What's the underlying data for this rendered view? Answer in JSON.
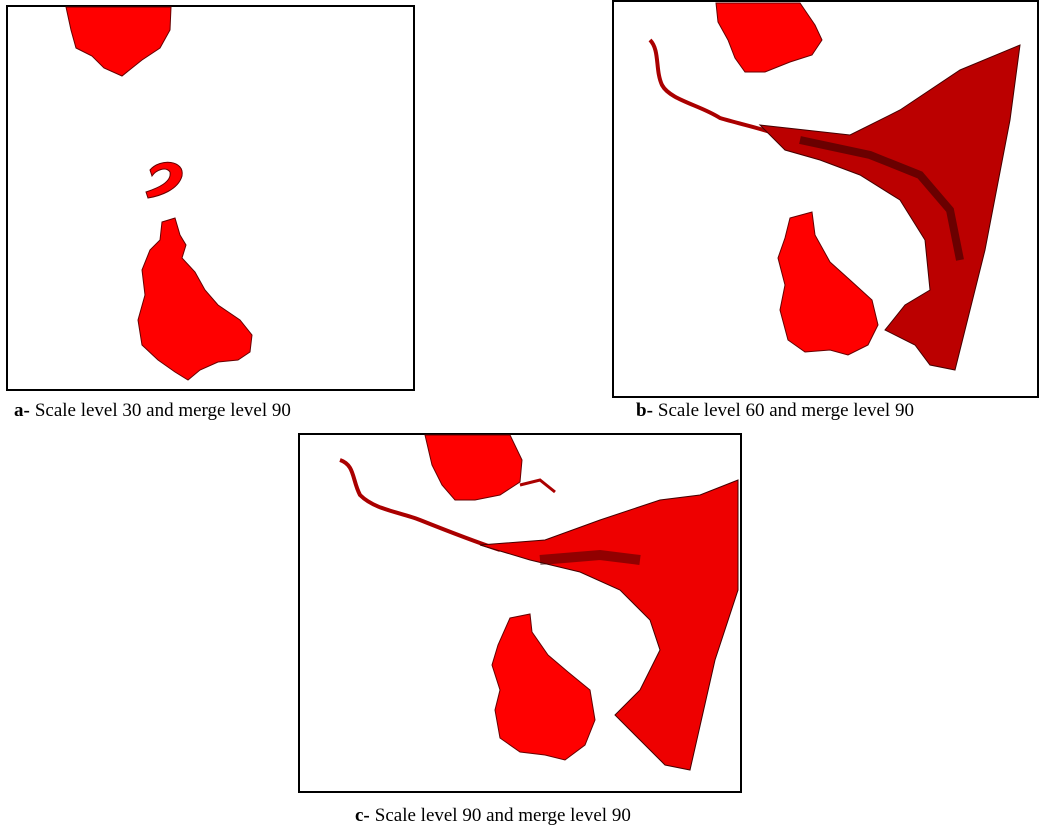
{
  "figures": [
    {
      "label": "a-",
      "caption": "Scale level 30 and merge level 90"
    },
    {
      "label": "b-",
      "caption": "Scale level 60 and merge level 90"
    },
    {
      "label": "c-",
      "caption": "Scale level 90 and merge level 90"
    }
  ]
}
